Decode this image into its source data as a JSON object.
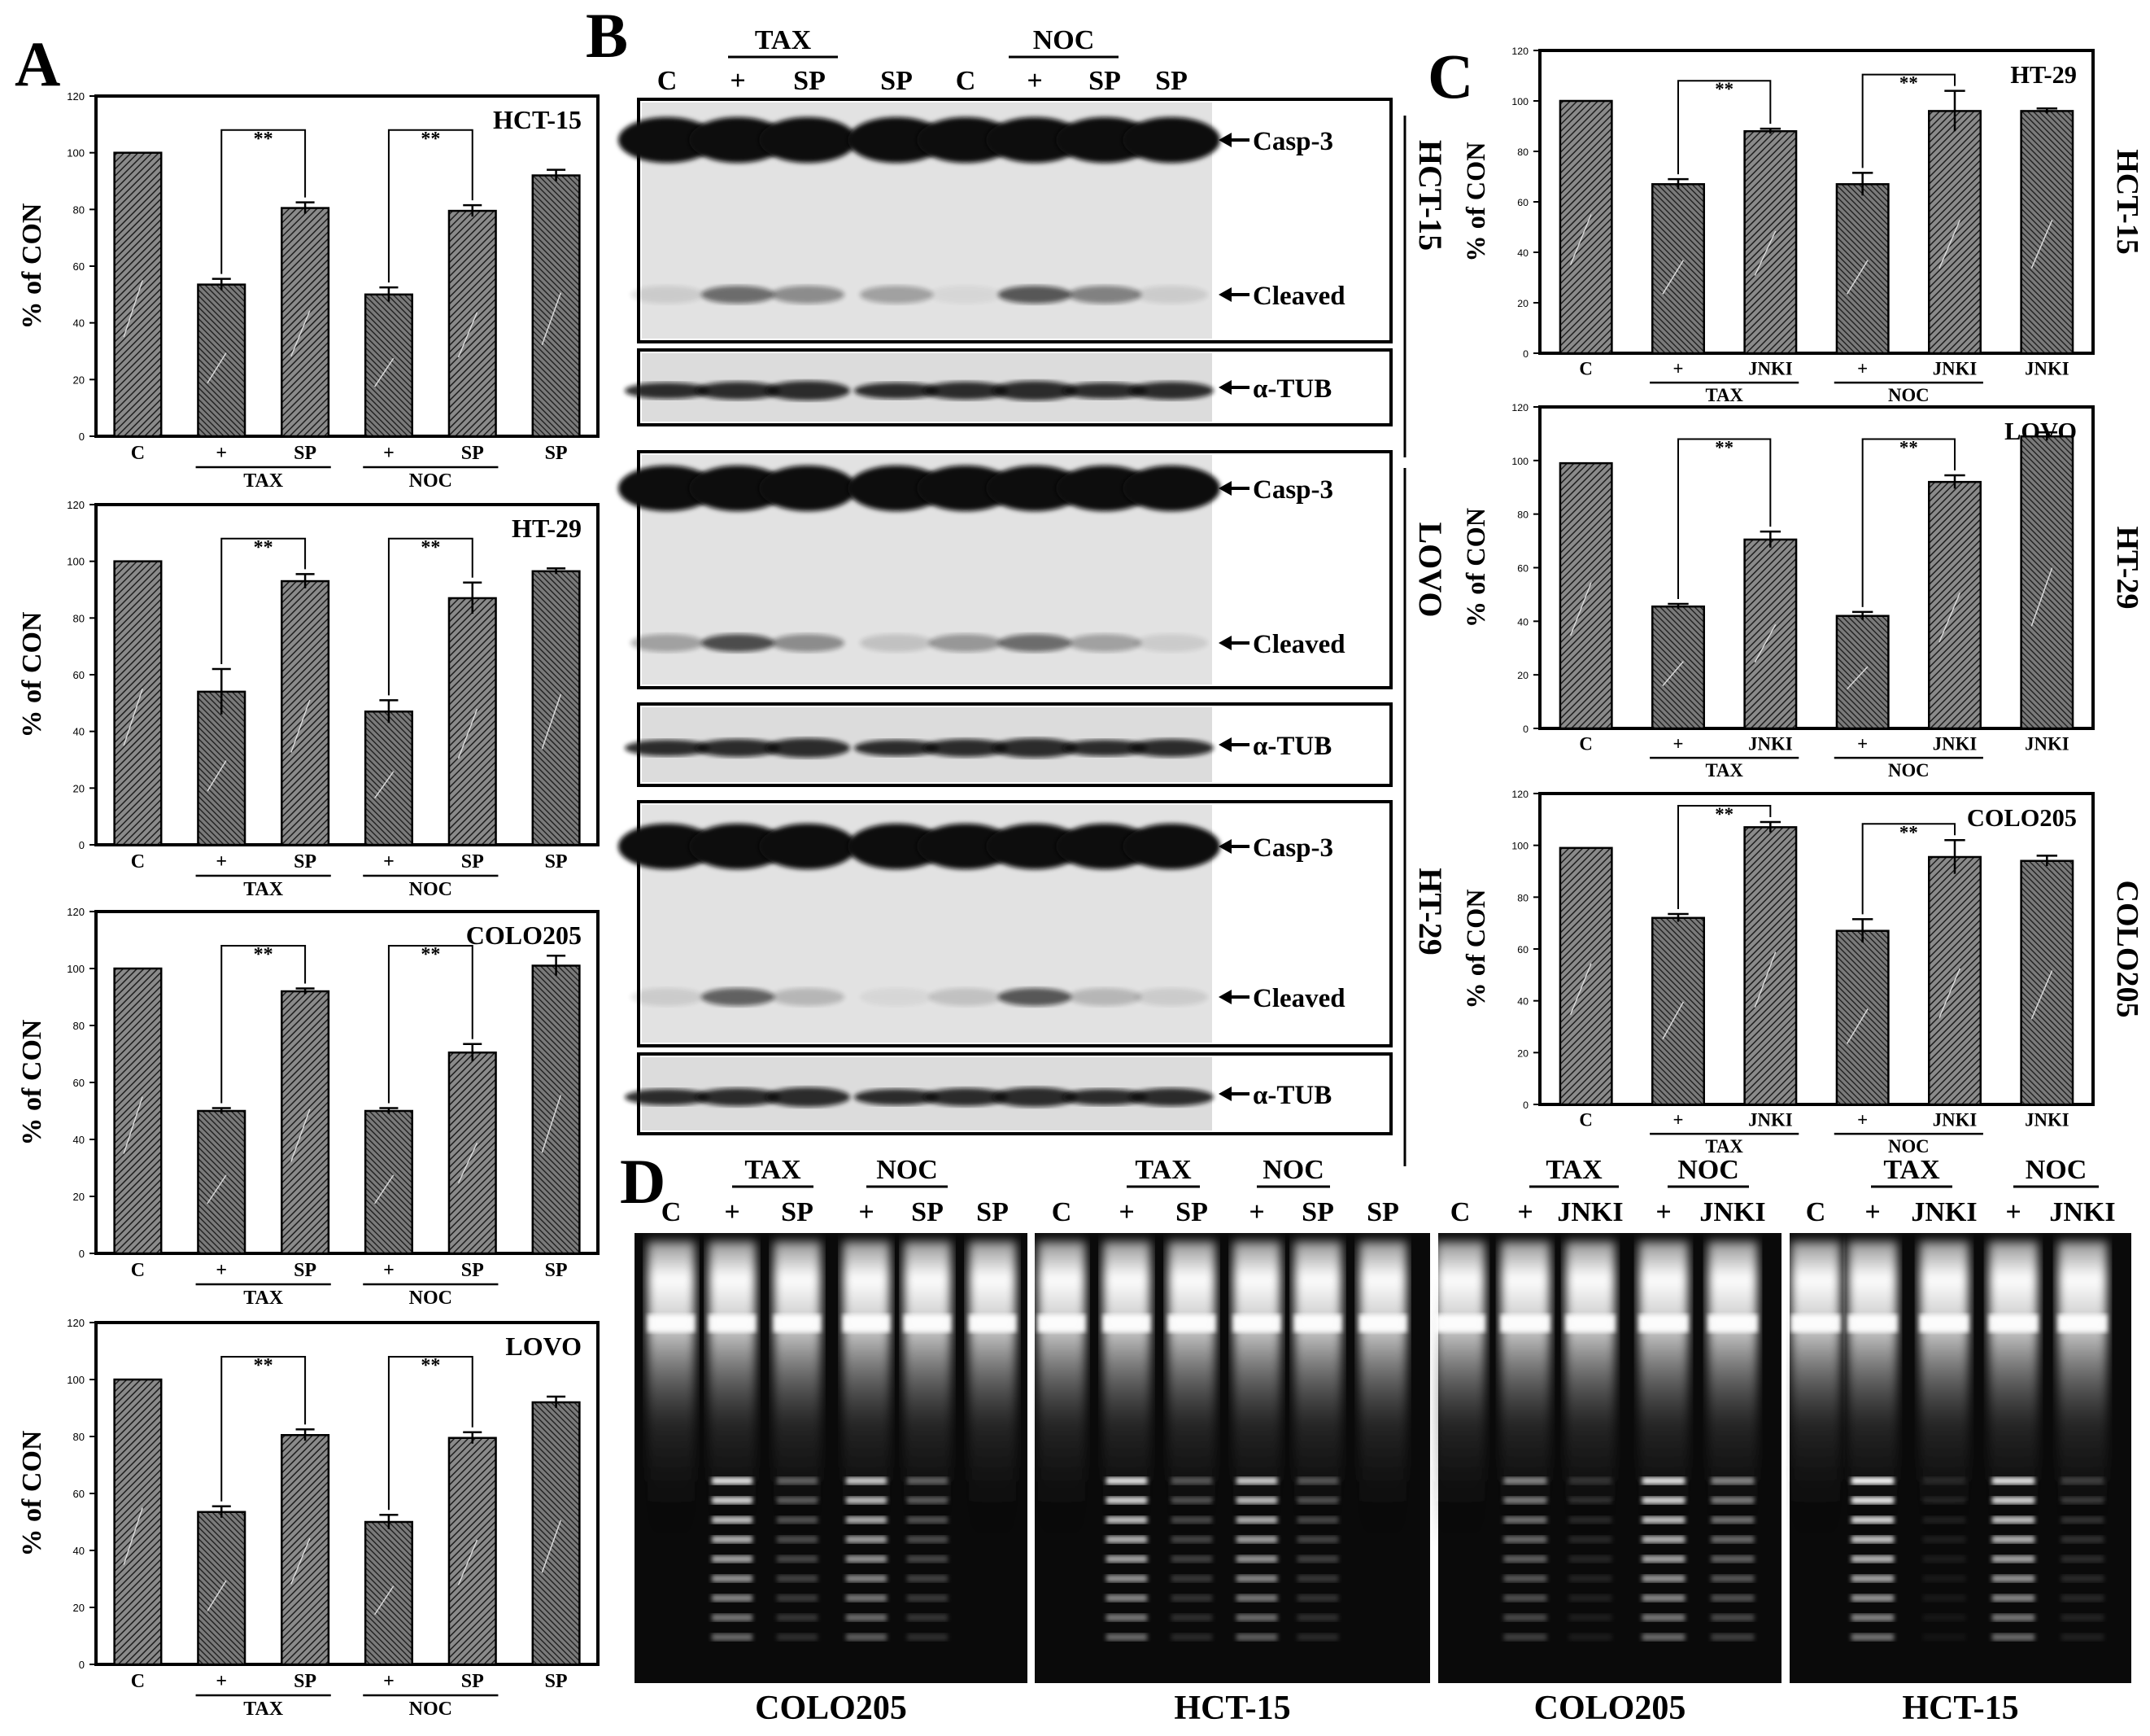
{
  "panel_letters": [
    "A",
    "B",
    "C",
    "D"
  ],
  "colors": {
    "bar_fill": "#6e6e6e",
    "frame": "#000000",
    "blot_bg": "#d9d9d9",
    "gel_bg": "#000000"
  },
  "chart_data": [
    {
      "panel": "A",
      "type": "bar",
      "title": "HCT-15",
      "ylabel": "% of CON",
      "ylim": [
        0,
        120
      ],
      "yticks": [
        "0",
        "20",
        "40",
        "60",
        "80",
        "100",
        "120"
      ],
      "categories": [
        "C",
        "+",
        "SP",
        "+",
        "SP",
        "SP"
      ],
      "values": [
        100,
        53.5,
        80.5,
        50,
        79.5,
        92
      ],
      "errors": [
        0,
        2,
        2,
        2.5,
        2,
        2
      ],
      "groups": [
        {
          "label": "TAX",
          "from": 1,
          "to": 2
        },
        {
          "label": "NOC",
          "from": 3,
          "to": 4
        }
      ],
      "significance": [
        {
          "from": 1,
          "to": 2,
          "label": "**"
        },
        {
          "from": 3,
          "to": 4,
          "label": "**"
        }
      ]
    },
    {
      "panel": "A",
      "type": "bar",
      "title": "HT-29",
      "ylabel": "% of CON",
      "ylim": [
        0,
        120
      ],
      "yticks": [
        "0",
        "20",
        "40",
        "60",
        "80",
        "100",
        "120"
      ],
      "categories": [
        "C",
        "+",
        "SP",
        "+",
        "SP",
        "SP"
      ],
      "values": [
        100,
        54,
        93,
        47,
        87,
        96.5
      ],
      "errors": [
        0,
        8,
        2.5,
        4,
        5.5,
        1
      ],
      "groups": [
        {
          "label": "TAX",
          "from": 1,
          "to": 2
        },
        {
          "label": "NOC",
          "from": 3,
          "to": 4
        }
      ],
      "significance": [
        {
          "from": 1,
          "to": 2,
          "label": "**"
        },
        {
          "from": 3,
          "to": 4,
          "label": "**"
        }
      ]
    },
    {
      "panel": "A",
      "type": "bar",
      "title": "COLO205",
      "ylabel": "% of CON",
      "ylim": [
        0,
        120
      ],
      "yticks": [
        "0",
        "20",
        "40",
        "60",
        "80",
        "100",
        "120"
      ],
      "categories": [
        "C",
        "+",
        "SP",
        "+",
        "SP",
        "SP"
      ],
      "values": [
        100,
        50,
        92,
        50,
        70.5,
        101
      ],
      "errors": [
        0,
        1,
        1,
        1,
        3,
        3.5
      ],
      "groups": [
        {
          "label": "TAX",
          "from": 1,
          "to": 2
        },
        {
          "label": "NOC",
          "from": 3,
          "to": 4
        }
      ],
      "significance": [
        {
          "from": 1,
          "to": 2,
          "label": "**"
        },
        {
          "from": 3,
          "to": 4,
          "label": "**"
        }
      ]
    },
    {
      "panel": "A",
      "type": "bar",
      "title": "LOVO",
      "ylabel": "% of CON",
      "ylim": [
        0,
        120
      ],
      "yticks": [
        "0",
        "20",
        "40",
        "60",
        "80",
        "100",
        "120"
      ],
      "categories": [
        "C",
        "+",
        "SP",
        "+",
        "SP",
        "SP"
      ],
      "values": [
        100,
        53.5,
        80.5,
        50,
        79.5,
        92
      ],
      "errors": [
        0,
        2,
        2,
        2.5,
        2,
        2
      ],
      "groups": [
        {
          "label": "TAX",
          "from": 1,
          "to": 2
        },
        {
          "label": "NOC",
          "from": 3,
          "to": 4
        }
      ],
      "significance": [
        {
          "from": 1,
          "to": 2,
          "label": "**"
        },
        {
          "from": 3,
          "to": 4,
          "label": "**"
        }
      ]
    },
    {
      "panel": "C",
      "type": "bar",
      "title": "HT-29",
      "side_label": "HCT-15",
      "ylabel": "% of CON",
      "ylim": [
        0,
        120
      ],
      "yticks": [
        "0",
        "20",
        "40",
        "60",
        "80",
        "100",
        "120"
      ],
      "categories": [
        "C",
        "+",
        "JNKI",
        "+",
        "JNKI",
        "JNKI"
      ],
      "values": [
        100,
        67,
        88,
        67,
        96,
        96
      ],
      "errors": [
        0,
        2,
        1,
        4.5,
        8,
        1
      ],
      "groups": [
        {
          "label": "TAX",
          "from": 1,
          "to": 2
        },
        {
          "label": "NOC",
          "from": 3,
          "to": 4
        }
      ],
      "significance": [
        {
          "from": 1,
          "to": 2,
          "label": "**"
        },
        {
          "from": 3,
          "to": 4,
          "label": "**"
        }
      ]
    },
    {
      "panel": "C",
      "type": "bar",
      "title": "LOVO",
      "side_label": "HT-29",
      "ylabel": "% of CON",
      "ylim": [
        0,
        120
      ],
      "yticks": [
        "0",
        "20",
        "40",
        "60",
        "80",
        "100",
        "120"
      ],
      "categories": [
        "C",
        "+",
        "JNKI",
        "+",
        "JNKI",
        "JNKI"
      ],
      "values": [
        99,
        45.5,
        70.5,
        42,
        92,
        109
      ],
      "errors": [
        0,
        1,
        3,
        1.5,
        2.5,
        1.5
      ],
      "groups": [
        {
          "label": "TAX",
          "from": 1,
          "to": 2
        },
        {
          "label": "NOC",
          "from": 3,
          "to": 4
        }
      ],
      "significance": [
        {
          "from": 1,
          "to": 2,
          "label": "**"
        },
        {
          "from": 3,
          "to": 4,
          "label": "**"
        }
      ]
    },
    {
      "panel": "C",
      "type": "bar",
      "title": "COLO205",
      "side_label": "COLO205",
      "ylabel": "% of CON",
      "ylim": [
        0,
        120
      ],
      "yticks": [
        "0",
        "20",
        "40",
        "60",
        "80",
        "100",
        "120"
      ],
      "categories": [
        "C",
        "+",
        "JNKI",
        "+",
        "JNKI",
        "JNKI"
      ],
      "values": [
        99,
        72,
        107,
        67,
        95.5,
        94
      ],
      "errors": [
        0,
        1.5,
        2,
        4.5,
        6.5,
        2
      ],
      "groups": [
        {
          "label": "TAX",
          "from": 1,
          "to": 2
        },
        {
          "label": "NOC",
          "from": 3,
          "to": 4
        }
      ],
      "significance": [
        {
          "from": 1,
          "to": 2,
          "label": "**"
        },
        {
          "from": 3,
          "to": 4,
          "label": "**"
        }
      ]
    }
  ],
  "panel_b": {
    "header_groups": [
      "TAX",
      "NOC"
    ],
    "lanes": [
      "C",
      "+",
      "SP",
      "SP",
      "C",
      "+",
      "SP",
      "SP"
    ],
    "markers": {
      "casp3": "Casp-3",
      "cleaved": "Cleaved",
      "tub": "α-TUB"
    },
    "cell_lines": [
      "HCT-15",
      "LOVO",
      "HT-29"
    ]
  },
  "panel_d": {
    "gels": [
      {
        "caption": "COLO205",
        "groups": [
          "TAX",
          "NOC"
        ],
        "lanes": [
          "C",
          "+",
          "SP",
          "+",
          "SP",
          "SP"
        ]
      },
      {
        "caption": "HCT-15",
        "groups": [
          "TAX",
          "NOC"
        ],
        "lanes": [
          "C",
          "+",
          "SP",
          "+",
          "SP",
          "SP"
        ]
      },
      {
        "caption": "COLO205",
        "groups": [
          "TAX",
          "NOC"
        ],
        "lanes": [
          "C",
          "+",
          "JNKI",
          "+",
          "JNKI"
        ]
      },
      {
        "caption": "HCT-15",
        "groups": [
          "TAX",
          "NOC"
        ],
        "lanes": [
          "C",
          "+",
          "JNKI",
          "+",
          "JNKI"
        ]
      }
    ]
  }
}
